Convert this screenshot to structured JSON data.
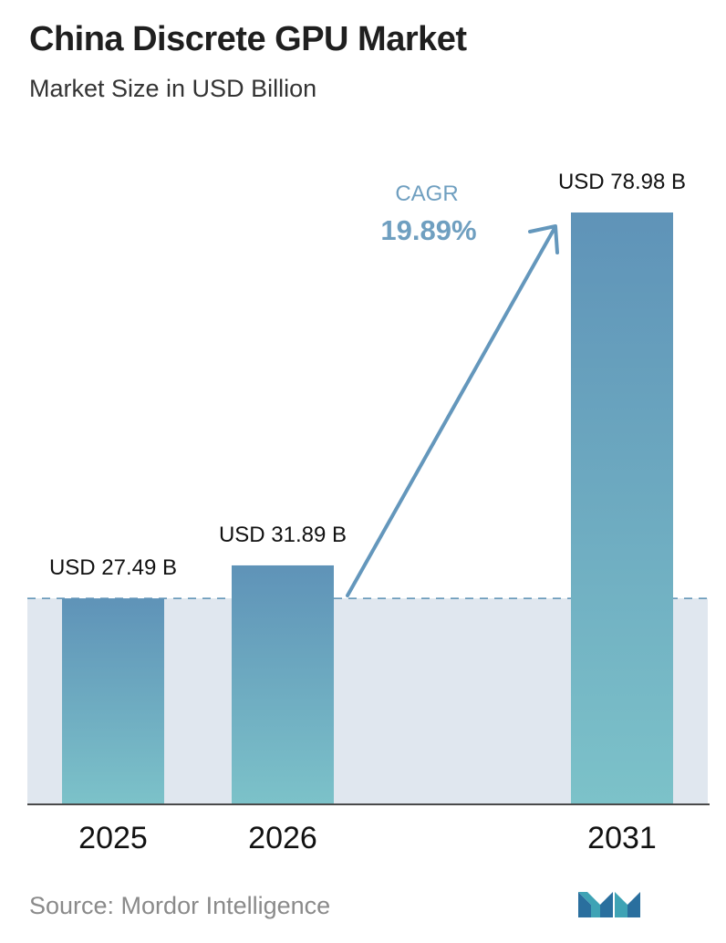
{
  "title": "China Discrete GPU Market",
  "subtitle": "Market Size in USD Billion",
  "source": "Source:  Mordor Intelligence",
  "logo_icon": "mordor-intelligence-logo",
  "colors": {
    "bar_top": "#5f93b8",
    "bar_bottom": "#7cc2c9",
    "band": "#e0e7ef",
    "dashed_line": "#5a8fb3",
    "arrow": "#6497bc",
    "axis": "#4a4a4a"
  },
  "annotation": {
    "cagr_label": "CAGR",
    "cagr_value": "19.89%"
  },
  "chart_data": {
    "type": "bar",
    "categories": [
      "2025",
      "2026",
      "2031"
    ],
    "values": [
      27.49,
      31.89,
      78.98
    ],
    "data_labels": [
      "USD 27.49 B",
      "USD 31.89 B",
      "USD 78.98 B"
    ],
    "title": "China Discrete GPU Market",
    "subtitle": "Market Size in USD Billion",
    "xlabel": "",
    "ylabel": "",
    "ylim": [
      0,
      85
    ],
    "grid": false,
    "legend": "none",
    "reference_line": 27.49
  }
}
